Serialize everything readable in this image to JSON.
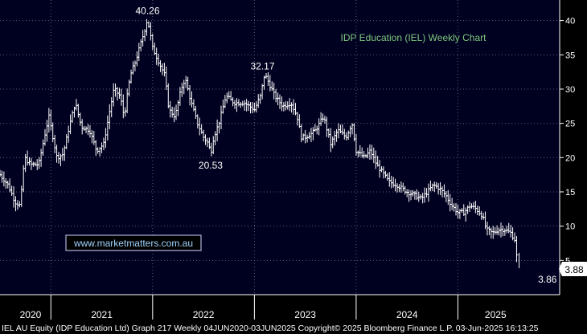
{
  "chart_data": {
    "type": "ohlc",
    "title": "IDP Education (IEL) Weekly Chart",
    "watermark": "www.marketmatters.com.au",
    "footer": "IEL AU Equity (IDP Education Ltd) Graph 217  Weekly 04JUN2020-03JUN2025 Copyright© 2025 Bloomberg Finance L.P. 03-Jun-2025 16:13:25",
    "last_price_tag": "3.88",
    "xlabel": "",
    "ylabel": "",
    "ylim": [
      0,
      43
    ],
    "yticks": [
      5,
      10,
      15,
      20,
      25,
      30,
      35,
      40
    ],
    "xlim": [
      2020.0,
      2025.5
    ],
    "year_ticks": [
      2020.5,
      2021.5,
      2022.5,
      2023.5,
      2024.5,
      2025.5
    ],
    "year_labels": [
      {
        "label": "2020",
        "x": 2020.3
      },
      {
        "label": "2021",
        "x": 2021.0
      },
      {
        "label": "2022",
        "x": 2022.0
      },
      {
        "label": "2023",
        "x": 2023.0
      },
      {
        "label": "2024",
        "x": 2024.0
      },
      {
        "label": "2025",
        "x": 2024.87
      }
    ],
    "annotations": [
      {
        "text": "40.26",
        "x": 2021.45,
        "y": 40.26,
        "pos": "above"
      },
      {
        "text": "32.17",
        "x": 2022.58,
        "y": 32.17,
        "pos": "above"
      },
      {
        "text": "20.53",
        "x": 2022.07,
        "y": 20.53,
        "pos": "below"
      },
      {
        "text": "3.86",
        "x": 2025.38,
        "y": 3.86,
        "pos": "below"
      }
    ],
    "anchors": [
      [
        2020.0,
        17.5
      ],
      [
        2020.08,
        16
      ],
      [
        2020.15,
        13.5
      ],
      [
        2020.2,
        13
      ],
      [
        2020.24,
        20
      ],
      [
        2020.3,
        19
      ],
      [
        2020.38,
        19
      ],
      [
        2020.45,
        24
      ],
      [
        2020.48,
        26
      ],
      [
        2020.56,
        20
      ],
      [
        2020.62,
        20.5
      ],
      [
        2020.68,
        24.5
      ],
      [
        2020.74,
        28
      ],
      [
        2020.8,
        24.5
      ],
      [
        2020.88,
        24
      ],
      [
        2020.95,
        21
      ],
      [
        2021.02,
        22
      ],
      [
        2021.08,
        27
      ],
      [
        2021.12,
        30
      ],
      [
        2021.18,
        29
      ],
      [
        2021.22,
        26
      ],
      [
        2021.28,
        32
      ],
      [
        2021.33,
        34
      ],
      [
        2021.42,
        38.5
      ],
      [
        2021.45,
        40.26
      ],
      [
        2021.5,
        36
      ],
      [
        2021.56,
        34
      ],
      [
        2021.62,
        32
      ],
      [
        2021.66,
        27
      ],
      [
        2021.72,
        26
      ],
      [
        2021.78,
        30
      ],
      [
        2021.82,
        31.5
      ],
      [
        2021.88,
        28
      ],
      [
        2021.94,
        25
      ],
      [
        2022.0,
        23
      ],
      [
        2022.05,
        22
      ],
      [
        2022.07,
        20.53
      ],
      [
        2022.1,
        23
      ],
      [
        2022.15,
        25
      ],
      [
        2022.22,
        29
      ],
      [
        2022.3,
        28
      ],
      [
        2022.4,
        28
      ],
      [
        2022.5,
        27
      ],
      [
        2022.56,
        29
      ],
      [
        2022.6,
        32.17
      ],
      [
        2022.64,
        31
      ],
      [
        2022.7,
        29
      ],
      [
        2022.78,
        27.5
      ],
      [
        2022.86,
        28
      ],
      [
        2022.92,
        26
      ],
      [
        2022.96,
        23
      ],
      [
        2023.0,
        23
      ],
      [
        2023.06,
        23.5
      ],
      [
        2023.1,
        24
      ],
      [
        2023.18,
        26
      ],
      [
        2023.25,
        22
      ],
      [
        2023.32,
        24
      ],
      [
        2023.4,
        23
      ],
      [
        2023.46,
        25
      ],
      [
        2023.5,
        21
      ],
      [
        2023.58,
        20
      ],
      [
        2023.64,
        21
      ],
      [
        2023.7,
        19
      ],
      [
        2023.75,
        18
      ],
      [
        2023.82,
        16.5
      ],
      [
        2023.9,
        16
      ],
      [
        2024.0,
        15
      ],
      [
        2024.08,
        14.5
      ],
      [
        2024.14,
        14
      ],
      [
        2024.2,
        15
      ],
      [
        2024.26,
        16
      ],
      [
        2024.32,
        15.5
      ],
      [
        2024.38,
        14.5
      ],
      [
        2024.44,
        13
      ],
      [
        2024.5,
        12
      ],
      [
        2024.56,
        12
      ],
      [
        2024.62,
        13
      ],
      [
        2024.68,
        12.5
      ],
      [
        2024.74,
        11.5
      ],
      [
        2024.78,
        9.5
      ],
      [
        2024.84,
        9
      ],
      [
        2024.9,
        9.5
      ],
      [
        2024.96,
        9.5
      ],
      [
        2025.02,
        9
      ],
      [
        2025.06,
        8
      ],
      [
        2025.09,
        3.86
      ]
    ]
  }
}
